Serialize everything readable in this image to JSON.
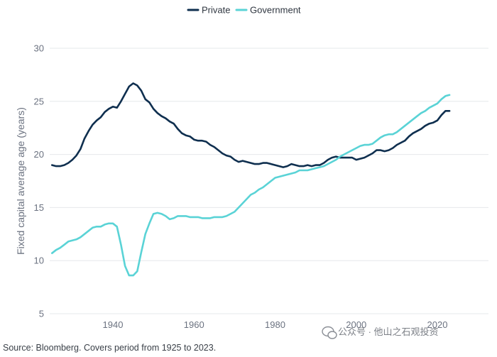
{
  "chart_data": {
    "type": "line",
    "title": "",
    "ylabel": "Fixed capital average age (years)",
    "xlabel": "",
    "xlim": [
      1925,
      2023
    ],
    "ylim": [
      5,
      30
    ],
    "yticks": [
      5,
      10,
      15,
      20,
      25,
      30
    ],
    "xticks": [
      1940,
      1960,
      1980,
      2000,
      2020
    ],
    "grid": "horizontal",
    "legend": "top-center",
    "series": [
      {
        "name": "Private",
        "color": "#0f2f4f",
        "points": [
          [
            1925,
            19.0
          ],
          [
            1926,
            18.9
          ],
          [
            1927,
            18.9
          ],
          [
            1928,
            19.0
          ],
          [
            1929,
            19.2
          ],
          [
            1930,
            19.5
          ],
          [
            1931,
            19.9
          ],
          [
            1932,
            20.5
          ],
          [
            1933,
            21.5
          ],
          [
            1934,
            22.2
          ],
          [
            1935,
            22.8
          ],
          [
            1936,
            23.2
          ],
          [
            1937,
            23.5
          ],
          [
            1938,
            24.0
          ],
          [
            1939,
            24.3
          ],
          [
            1940,
            24.5
          ],
          [
            1941,
            24.4
          ],
          [
            1942,
            25.0
          ],
          [
            1943,
            25.7
          ],
          [
            1944,
            26.4
          ],
          [
            1945,
            26.7
          ],
          [
            1946,
            26.5
          ],
          [
            1947,
            26.0
          ],
          [
            1948,
            25.2
          ],
          [
            1949,
            24.9
          ],
          [
            1950,
            24.3
          ],
          [
            1951,
            23.9
          ],
          [
            1952,
            23.6
          ],
          [
            1953,
            23.4
          ],
          [
            1954,
            23.1
          ],
          [
            1955,
            22.9
          ],
          [
            1956,
            22.4
          ],
          [
            1957,
            22.0
          ],
          [
            1958,
            21.8
          ],
          [
            1959,
            21.7
          ],
          [
            1960,
            21.4
          ],
          [
            1961,
            21.3
          ],
          [
            1962,
            21.3
          ],
          [
            1963,
            21.2
          ],
          [
            1964,
            20.9
          ],
          [
            1965,
            20.7
          ],
          [
            1966,
            20.4
          ],
          [
            1967,
            20.1
          ],
          [
            1968,
            19.9
          ],
          [
            1969,
            19.8
          ],
          [
            1970,
            19.5
          ],
          [
            1971,
            19.3
          ],
          [
            1972,
            19.4
          ],
          [
            1973,
            19.3
          ],
          [
            1974,
            19.2
          ],
          [
            1975,
            19.1
          ],
          [
            1976,
            19.1
          ],
          [
            1977,
            19.2
          ],
          [
            1978,
            19.2
          ],
          [
            1979,
            19.1
          ],
          [
            1980,
            19.0
          ],
          [
            1981,
            18.9
          ],
          [
            1982,
            18.8
          ],
          [
            1983,
            18.9
          ],
          [
            1984,
            19.1
          ],
          [
            1985,
            19.0
          ],
          [
            1986,
            18.9
          ],
          [
            1987,
            18.9
          ],
          [
            1988,
            19.0
          ],
          [
            1989,
            18.9
          ],
          [
            1990,
            19.0
          ],
          [
            1991,
            19.0
          ],
          [
            1992,
            19.2
          ],
          [
            1993,
            19.5
          ],
          [
            1994,
            19.7
          ],
          [
            1995,
            19.8
          ],
          [
            1996,
            19.7
          ],
          [
            1997,
            19.7
          ],
          [
            1998,
            19.7
          ],
          [
            1999,
            19.7
          ],
          [
            2000,
            19.5
          ],
          [
            2001,
            19.6
          ],
          [
            2002,
            19.7
          ],
          [
            2003,
            19.9
          ],
          [
            2004,
            20.1
          ],
          [
            2005,
            20.4
          ],
          [
            2006,
            20.4
          ],
          [
            2007,
            20.3
          ],
          [
            2008,
            20.4
          ],
          [
            2009,
            20.6
          ],
          [
            2010,
            20.9
          ],
          [
            2011,
            21.1
          ],
          [
            2012,
            21.3
          ],
          [
            2013,
            21.7
          ],
          [
            2014,
            22.0
          ],
          [
            2015,
            22.2
          ],
          [
            2016,
            22.4
          ],
          [
            2017,
            22.7
          ],
          [
            2018,
            22.9
          ],
          [
            2019,
            23.0
          ],
          [
            2020,
            23.2
          ],
          [
            2021,
            23.7
          ],
          [
            2022,
            24.1
          ],
          [
            2023,
            24.1
          ]
        ]
      },
      {
        "name": "Government",
        "color": "#5ad3d6",
        "points": [
          [
            1925,
            10.7
          ],
          [
            1926,
            11.0
          ],
          [
            1927,
            11.2
          ],
          [
            1928,
            11.5
          ],
          [
            1929,
            11.8
          ],
          [
            1930,
            11.9
          ],
          [
            1931,
            12.0
          ],
          [
            1932,
            12.2
          ],
          [
            1933,
            12.5
          ],
          [
            1934,
            12.8
          ],
          [
            1935,
            13.1
          ],
          [
            1936,
            13.2
          ],
          [
            1937,
            13.2
          ],
          [
            1938,
            13.4
          ],
          [
            1939,
            13.5
          ],
          [
            1940,
            13.5
          ],
          [
            1941,
            13.2
          ],
          [
            1942,
            11.5
          ],
          [
            1943,
            9.5
          ],
          [
            1944,
            8.6
          ],
          [
            1945,
            8.6
          ],
          [
            1946,
            9.0
          ],
          [
            1947,
            10.8
          ],
          [
            1948,
            12.5
          ],
          [
            1949,
            13.5
          ],
          [
            1950,
            14.4
          ],
          [
            1951,
            14.5
          ],
          [
            1952,
            14.4
          ],
          [
            1953,
            14.2
          ],
          [
            1954,
            13.9
          ],
          [
            1955,
            14.0
          ],
          [
            1956,
            14.2
          ],
          [
            1957,
            14.2
          ],
          [
            1958,
            14.2
          ],
          [
            1959,
            14.1
          ],
          [
            1960,
            14.1
          ],
          [
            1961,
            14.1
          ],
          [
            1962,
            14.0
          ],
          [
            1963,
            14.0
          ],
          [
            1964,
            14.0
          ],
          [
            1965,
            14.1
          ],
          [
            1966,
            14.1
          ],
          [
            1967,
            14.1
          ],
          [
            1968,
            14.2
          ],
          [
            1969,
            14.4
          ],
          [
            1970,
            14.6
          ],
          [
            1971,
            15.0
          ],
          [
            1972,
            15.4
          ],
          [
            1973,
            15.8
          ],
          [
            1974,
            16.2
          ],
          [
            1975,
            16.4
          ],
          [
            1976,
            16.7
          ],
          [
            1977,
            16.9
          ],
          [
            1978,
            17.2
          ],
          [
            1979,
            17.5
          ],
          [
            1980,
            17.8
          ],
          [
            1981,
            17.9
          ],
          [
            1982,
            18.0
          ],
          [
            1983,
            18.1
          ],
          [
            1984,
            18.2
          ],
          [
            1985,
            18.3
          ],
          [
            1986,
            18.5
          ],
          [
            1987,
            18.5
          ],
          [
            1988,
            18.5
          ],
          [
            1989,
            18.6
          ],
          [
            1990,
            18.7
          ],
          [
            1991,
            18.8
          ],
          [
            1992,
            18.9
          ],
          [
            1993,
            19.1
          ],
          [
            1994,
            19.3
          ],
          [
            1995,
            19.5
          ],
          [
            1996,
            19.8
          ],
          [
            1997,
            20.0
          ],
          [
            1998,
            20.2
          ],
          [
            1999,
            20.4
          ],
          [
            2000,
            20.6
          ],
          [
            2001,
            20.8
          ],
          [
            2002,
            20.9
          ],
          [
            2003,
            20.9
          ],
          [
            2004,
            21.0
          ],
          [
            2005,
            21.3
          ],
          [
            2006,
            21.6
          ],
          [
            2007,
            21.8
          ],
          [
            2008,
            21.9
          ],
          [
            2009,
            21.9
          ],
          [
            2010,
            22.1
          ],
          [
            2011,
            22.4
          ],
          [
            2012,
            22.7
          ],
          [
            2013,
            23.0
          ],
          [
            2014,
            23.3
          ],
          [
            2015,
            23.6
          ],
          [
            2016,
            23.9
          ],
          [
            2017,
            24.1
          ],
          [
            2018,
            24.4
          ],
          [
            2019,
            24.6
          ],
          [
            2020,
            24.8
          ],
          [
            2021,
            25.2
          ],
          [
            2022,
            25.5
          ],
          [
            2023,
            25.6
          ]
        ]
      }
    ]
  },
  "source": "Source: Bloomberg. Covers period from 1925 to 2023.",
  "watermark": "公众号 · 他山之石观投资"
}
